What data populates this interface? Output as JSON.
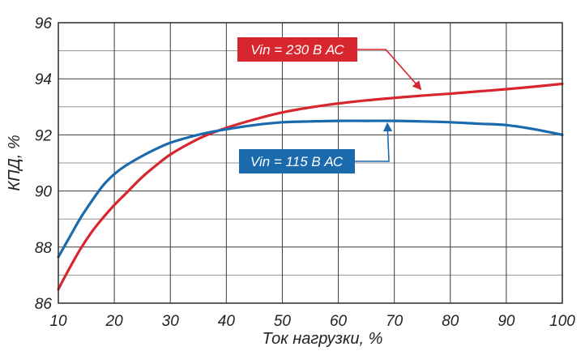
{
  "chart_data": {
    "type": "line",
    "title": "",
    "xlabel": "Ток нагрузки, %",
    "ylabel": "КПД, %",
    "xlim": [
      10,
      100
    ],
    "ylim": [
      86,
      96
    ],
    "xticks": [
      10,
      20,
      30,
      40,
      50,
      60,
      70,
      80,
      90,
      100
    ],
    "yticks": [
      86,
      88,
      90,
      92,
      94,
      96
    ],
    "grid": true,
    "legend": "none",
    "series": [
      {
        "name": "Vin = 230 В АС",
        "color": "#d7262e",
        "x": [
          10,
          12,
          14,
          16,
          18,
          20,
          22,
          25,
          28,
          30,
          33,
          36,
          40,
          45,
          50,
          55,
          60,
          65,
          70,
          75,
          80,
          85,
          90,
          95,
          100
        ],
        "y": [
          86.5,
          87.25,
          87.95,
          88.55,
          89.05,
          89.5,
          89.9,
          90.5,
          91.0,
          91.3,
          91.65,
          91.95,
          92.25,
          92.55,
          92.8,
          92.98,
          93.12,
          93.23,
          93.32,
          93.4,
          93.47,
          93.55,
          93.63,
          93.72,
          93.82
        ]
      },
      {
        "name": "Vin = 115 В АС",
        "color": "#1a6aad",
        "x": [
          10,
          12,
          14,
          16,
          18,
          20,
          22,
          25,
          28,
          30,
          33,
          36,
          40,
          45,
          50,
          55,
          60,
          65,
          70,
          75,
          80,
          85,
          90,
          95,
          100
        ],
        "y": [
          87.65,
          88.35,
          89.05,
          89.65,
          90.2,
          90.6,
          90.9,
          91.25,
          91.55,
          91.72,
          91.9,
          92.05,
          92.2,
          92.35,
          92.45,
          92.48,
          92.5,
          92.5,
          92.5,
          92.48,
          92.45,
          92.4,
          92.35,
          92.2,
          92.0
        ]
      }
    ],
    "annotations": [
      {
        "text": "Vin = 230 В АС",
        "series": 0,
        "color": "#d7262e"
      },
      {
        "text": "Vin = 115 В АС",
        "series": 1,
        "color": "#1a6aad"
      }
    ]
  }
}
